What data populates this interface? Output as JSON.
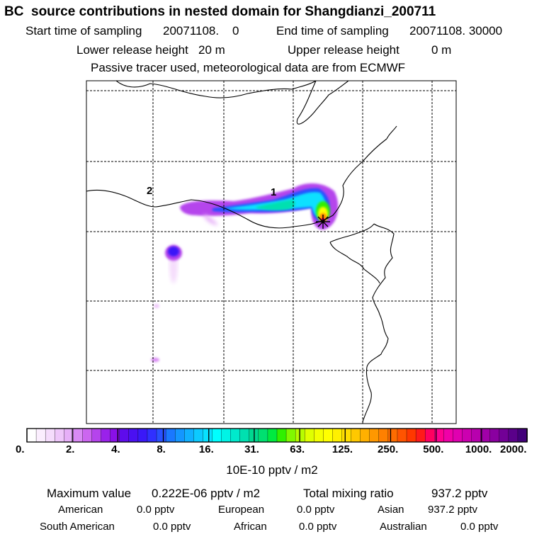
{
  "header": {
    "title": "BC  source contributions in nested domain for Shangdianzi_200711",
    "start_label": "Start time of sampling",
    "start_value": "20071108.    0",
    "end_label": "End time of sampling",
    "end_value": "20071108. 30000",
    "lower_label": "Lower release height",
    "lower_value": "20 m",
    "upper_label": "Upper release height",
    "upper_value": "0 m",
    "note": "Passive tracer used, meteorological data are from ECMWF"
  },
  "chart_data": {
    "type": "heatmap",
    "title": "BC  source contributions in nested domain for Shangdianzi_200711",
    "point_labels": [
      "1",
      "2"
    ],
    "receptor_marker": "star",
    "colorbar": {
      "tick_labels": [
        "0.",
        "2.",
        "4.",
        "8.",
        "16.",
        "31.",
        "63.",
        "125.",
        "250.",
        "500.",
        "1000.",
        "2000."
      ],
      "tick_values": [
        0,
        2,
        4,
        8,
        16,
        31,
        63,
        125,
        250,
        500,
        1000,
        2000
      ],
      "colors": [
        "#ffffff",
        "#fbeefe",
        "#f5dcfc",
        "#eec6fa",
        "#e6aff8",
        "#d98af4",
        "#cc66f0",
        "#b544ec",
        "#9a22ea",
        "#8a10e8",
        "#5e0cec",
        "#4a10f2",
        "#3a18f8",
        "#3030ff",
        "#2850ff",
        "#1a78ff",
        "#1496ff",
        "#10b0ff",
        "#0ccaff",
        "#08e0ff",
        "#00ffff",
        "#00f4e6",
        "#00eacc",
        "#00e0b0",
        "#00d890",
        "#00e070",
        "#00ea40",
        "#30f000",
        "#80f800",
        "#b8fc00",
        "#e0ff00",
        "#f4ff00",
        "#ffff00",
        "#fff000",
        "#ffde00",
        "#ffc800",
        "#ffb000",
        "#ff9800",
        "#ff8000",
        "#ff6c00",
        "#ff5400",
        "#ff3800",
        "#ff1a1a",
        "#ff0060",
        "#ff0090",
        "#f000a8",
        "#e000b0",
        "#cc00b0",
        "#b800ae",
        "#a000a8",
        "#8a00a0",
        "#720096",
        "#5a008a",
        "#42007a"
      ],
      "units": "10E-10 pptv / m2"
    },
    "max_label": "Maximum value",
    "max_value": "0.222E-06 pptv / m2",
    "total_label": "Total mixing ratio",
    "total_value": "937.2 pptv",
    "regions": [
      {
        "name": "American",
        "value": "0.0 pptv"
      },
      {
        "name": "European",
        "value": "0.0 pptv"
      },
      {
        "name": "Asian",
        "value": "937.2 pptv"
      },
      {
        "name": "South American",
        "value": "0.0 pptv"
      },
      {
        "name": "African",
        "value": "0.0 pptv"
      },
      {
        "name": "Australian",
        "value": "0.0 pptv"
      }
    ]
  }
}
